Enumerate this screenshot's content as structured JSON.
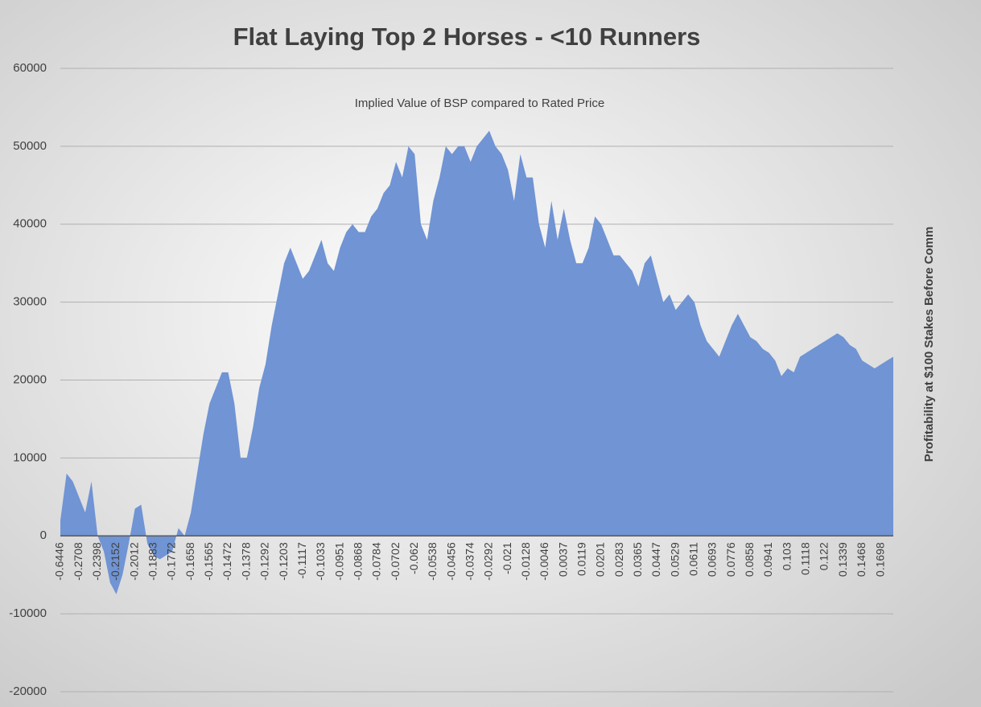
{
  "chart_data": {
    "type": "area",
    "title": "Flat Laying Top 2 Horses - <10 Runners",
    "subtitle": "Implied Value of BSP compared to Rated Price",
    "y_label": "Profitability at $100 Stakes Before Comm",
    "color": "#7094d4",
    "grid": true,
    "ylim": [
      -20000,
      60000
    ],
    "yticks": [
      -20000,
      -10000,
      0,
      10000,
      20000,
      30000,
      40000,
      50000,
      60000
    ],
    "categories": [
      "-0.6446",
      null,
      null,
      "-0.2708",
      null,
      null,
      "-0.2398",
      null,
      null,
      "-0.2152",
      null,
      null,
      "-0.2012",
      null,
      null,
      "-0.1883",
      null,
      null,
      "-0.1772",
      null,
      null,
      "-0.1658",
      null,
      null,
      "-0.1565",
      null,
      null,
      "-0.1472",
      null,
      null,
      "-0.1378",
      null,
      null,
      "-0.1292",
      null,
      null,
      "-0.1203",
      null,
      null,
      "-0.1117",
      null,
      null,
      "-0.1033",
      null,
      null,
      "-0.0951",
      null,
      null,
      "-0.0868",
      null,
      null,
      "-0.0784",
      null,
      null,
      "-0.0702",
      null,
      null,
      "-0.062",
      null,
      null,
      "-0.0538",
      null,
      null,
      "-0.0456",
      null,
      null,
      "-0.0374",
      null,
      null,
      "-0.0292",
      null,
      null,
      "-0.021",
      null,
      null,
      "-0.0128",
      null,
      null,
      "-0.0046",
      null,
      null,
      "0.0037",
      null,
      null,
      "0.0119",
      null,
      null,
      "0.0201",
      null,
      null,
      "0.0283",
      null,
      null,
      "0.0365",
      null,
      null,
      "0.0447",
      null,
      null,
      "0.0529",
      null,
      null,
      "0.0611",
      null,
      null,
      "0.0693",
      null,
      null,
      "0.0776",
      null,
      null,
      "0.0858",
      null,
      null,
      "0.0941",
      null,
      null,
      "0.103",
      null,
      null,
      "0.1118",
      null,
      null,
      "0.122",
      null,
      null,
      "0.1339",
      null,
      null,
      "0.1468",
      null,
      null,
      "0.1698",
      null,
      null
    ],
    "values": [
      2000,
      8000,
      7000,
      5000,
      3000,
      7000,
      0,
      -2000,
      -6000,
      -7500,
      -5000,
      -1000,
      3500,
      4000,
      -1000,
      -2500,
      -3000,
      -2500,
      -2000,
      1000,
      0,
      3000,
      8000,
      13000,
      17000,
      19000,
      21000,
      21000,
      17000,
      10000,
      10000,
      14000,
      19000,
      22000,
      27000,
      31000,
      35000,
      37000,
      35000,
      33000,
      34000,
      36000,
      38000,
      35000,
      34000,
      37000,
      39000,
      40000,
      39000,
      39000,
      41000,
      42000,
      44000,
      45000,
      48000,
      46000,
      50000,
      49000,
      40000,
      38000,
      43000,
      46000,
      50000,
      49000,
      50000,
      50000,
      48000,
      50000,
      51000,
      52000,
      50000,
      49000,
      47000,
      43000,
      49000,
      46000,
      46000,
      40000,
      37000,
      43000,
      38000,
      42000,
      38000,
      35000,
      35000,
      37000,
      41000,
      40000,
      38000,
      36000,
      36000,
      35000,
      34000,
      32000,
      35000,
      36000,
      33000,
      30000,
      31000,
      29000,
      30000,
      31000,
      30000,
      27000,
      25000,
      24000,
      23000,
      25000,
      27000,
      28500,
      27000,
      25500,
      25000,
      24000,
      23500,
      22500,
      20500,
      21500,
      21000,
      23000,
      23500,
      24000,
      24500,
      25000,
      25500,
      26000,
      25500,
      24500,
      24000,
      22500,
      22000,
      21500,
      22000,
      22500,
      23000
    ]
  }
}
